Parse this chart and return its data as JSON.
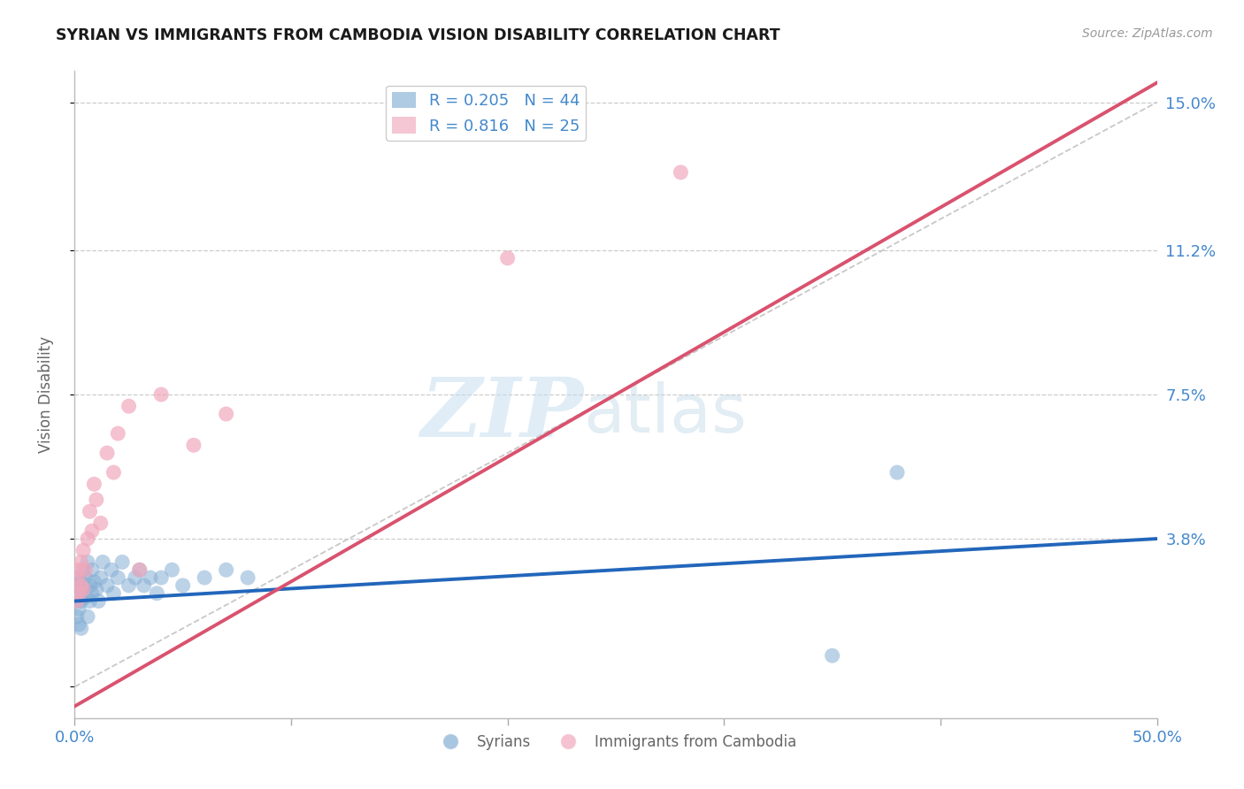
{
  "title": "SYRIAN VS IMMIGRANTS FROM CAMBODIA VISION DISABILITY CORRELATION CHART",
  "source": "Source: ZipAtlas.com",
  "ylabel": "Vision Disability",
  "right_yticks": [
    0.0,
    0.038,
    0.075,
    0.112,
    0.15
  ],
  "right_yticklabels": [
    "",
    "3.8%",
    "7.5%",
    "11.2%",
    "15.0%"
  ],
  "xmin": 0.0,
  "xmax": 0.5,
  "ymin": -0.008,
  "ymax": 0.158,
  "watermark_zip": "ZIP",
  "watermark_atlas": "atlas",
  "legend_R1": "R = 0.205",
  "legend_N1": "N = 44",
  "legend_R2": "R = 0.816",
  "legend_N2": "N = 25",
  "blue_color": "#85aed4",
  "pink_color": "#f0a8bc",
  "blue_line_color": "#2266bb",
  "pink_line_color": "#d9526e",
  "ref_line_color": "#c8c8c8",
  "background_color": "#ffffff",
  "grid_color": "#cccccc",
  "title_color": "#1a1a1a",
  "axis_label_color": "#4488cc",
  "syrians_x": [
    0.001,
    0.001,
    0.001,
    0.002,
    0.002,
    0.002,
    0.002,
    0.003,
    0.003,
    0.003,
    0.004,
    0.004,
    0.005,
    0.005,
    0.006,
    0.006,
    0.007,
    0.007,
    0.008,
    0.008,
    0.009,
    0.01,
    0.011,
    0.012,
    0.013,
    0.015,
    0.017,
    0.018,
    0.02,
    0.022,
    0.025,
    0.028,
    0.03,
    0.032,
    0.035,
    0.038,
    0.04,
    0.045,
    0.05,
    0.06,
    0.07,
    0.08,
    0.38,
    0.35
  ],
  "syrians_y": [
    0.022,
    0.018,
    0.026,
    0.024,
    0.02,
    0.016,
    0.028,
    0.022,
    0.027,
    0.015,
    0.025,
    0.03,
    0.023,
    0.028,
    0.032,
    0.018,
    0.026,
    0.022,
    0.03,
    0.024,
    0.027,
    0.025,
    0.022,
    0.028,
    0.032,
    0.026,
    0.03,
    0.024,
    0.028,
    0.032,
    0.026,
    0.028,
    0.03,
    0.026,
    0.028,
    0.024,
    0.028,
    0.03,
    0.026,
    0.028,
    0.03,
    0.028,
    0.055,
    0.008
  ],
  "cambodia_x": [
    0.001,
    0.001,
    0.002,
    0.002,
    0.003,
    0.003,
    0.004,
    0.004,
    0.005,
    0.006,
    0.007,
    0.008,
    0.009,
    0.01,
    0.012,
    0.015,
    0.018,
    0.02,
    0.025,
    0.03,
    0.04,
    0.055,
    0.07,
    0.2,
    0.28
  ],
  "cambodia_y": [
    0.022,
    0.028,
    0.024,
    0.03,
    0.026,
    0.032,
    0.025,
    0.035,
    0.03,
    0.038,
    0.045,
    0.04,
    0.052,
    0.048,
    0.042,
    0.06,
    0.055,
    0.065,
    0.072,
    0.03,
    0.075,
    0.062,
    0.07,
    0.11,
    0.132
  ],
  "blue_trend_x": [
    0.0,
    0.5
  ],
  "blue_trend_y": [
    0.022,
    0.038
  ],
  "pink_trend_x": [
    0.0,
    0.5
  ],
  "pink_trend_y": [
    -0.005,
    0.155
  ],
  "ref_line_x": [
    0.0,
    0.5
  ],
  "ref_line_y": [
    0.0,
    0.15
  ]
}
